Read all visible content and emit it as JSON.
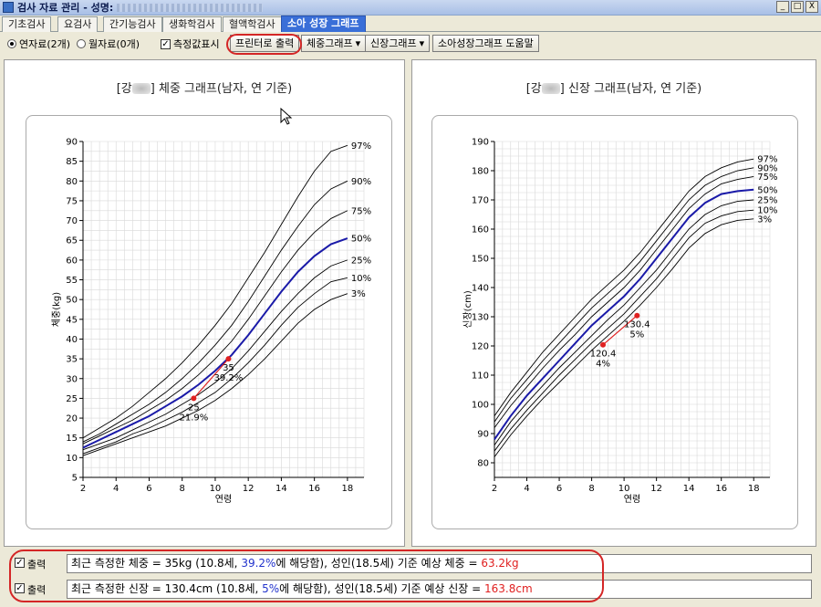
{
  "window": {
    "title": "검사 자료 관리 - 성명:",
    "min": "_",
    "max": "□",
    "close": "X"
  },
  "tabs": [
    {
      "label": "기초검사",
      "active": false
    },
    {
      "label": "요검사",
      "active": false
    },
    {
      "label": "간기능검사",
      "active": false
    },
    {
      "label": "생화학검사",
      "active": false
    },
    {
      "label": "혈액학검사",
      "active": false
    },
    {
      "label": "소아 성장 그래프",
      "active": true
    }
  ],
  "toolbar": {
    "radio_year": "연자료(2개)",
    "radio_month": "월자료(0개)",
    "check_values": "측정값표시",
    "print": "프린터로 출력",
    "weight_graph": "체중그래프",
    "height_graph": "신장그래프",
    "help": "소아성장그래프 도움말"
  },
  "weight_chart": {
    "title_pre": "[강",
    "title_post": "] 체중 그래프(남자, 연 기준)",
    "xlabel": "연령",
    "ylabel": "체중(kg)",
    "x_ticks": [
      2,
      4,
      6,
      8,
      10,
      12,
      14,
      16,
      18
    ],
    "y_ticks": [
      5,
      10,
      15,
      20,
      25,
      30,
      35,
      40,
      45,
      50,
      55,
      60,
      65,
      70,
      75,
      80,
      85,
      90
    ],
    "points": [
      {
        "age": 8.7,
        "value": 25,
        "label": "25",
        "pct": "21.9%"
      },
      {
        "age": 10.8,
        "value": 35,
        "label": "35",
        "pct": "39.2%"
      }
    ]
  },
  "height_chart": {
    "title_pre": "[강",
    "title_post": "] 신장 그래프(남자, 연 기준)",
    "xlabel": "연령",
    "ylabel": "신장(cm)",
    "x_ticks": [
      2,
      4,
      6,
      8,
      10,
      12,
      14,
      16,
      18
    ],
    "y_ticks": [
      80,
      90,
      100,
      110,
      120,
      130,
      140,
      150,
      160,
      170,
      180,
      190
    ],
    "points": [
      {
        "age": 8.7,
        "value": 120.4,
        "label": "120.4",
        "pct": "4%"
      },
      {
        "age": 10.8,
        "value": 130.4,
        "label": "130.4",
        "pct": "5%"
      }
    ]
  },
  "chart_data": [
    {
      "type": "line",
      "title": "체중 그래프(남자, 연 기준)",
      "xlabel": "연령",
      "ylabel": "체중(kg)",
      "xlim": [
        2,
        19
      ],
      "ylim": [
        5,
        90
      ],
      "x": [
        2,
        3,
        4,
        5,
        6,
        7,
        8,
        9,
        10,
        11,
        12,
        13,
        14,
        15,
        16,
        17,
        18
      ],
      "series": [
        {
          "name": "97%",
          "values": [
            15,
            17.5,
            20,
            23,
            26.5,
            30,
            34,
            38.5,
            43.5,
            49,
            55.5,
            62,
            69,
            76,
            82.5,
            87.5,
            89
          ]
        },
        {
          "name": "90%",
          "values": [
            14,
            16,
            18.5,
            21,
            23.5,
            26.5,
            30,
            34,
            38.5,
            43.5,
            49.5,
            56,
            62.5,
            68.5,
            74,
            78,
            80
          ]
        },
        {
          "name": "75%",
          "values": [
            13.5,
            15.5,
            17.5,
            19.5,
            22,
            24.5,
            27.5,
            31,
            35,
            39.5,
            45,
            51,
            57,
            62.5,
            67,
            70.5,
            72.5
          ]
        },
        {
          "name": "50%",
          "values": [
            12.5,
            14.5,
            16.5,
            18.5,
            20.5,
            23,
            25.5,
            28.5,
            32,
            36,
            41,
            46.5,
            52,
            57,
            61,
            64,
            65.5
          ]
        },
        {
          "name": "25%",
          "values": [
            12,
            13.5,
            15,
            17,
            19,
            21,
            23.5,
            26,
            29,
            32.5,
            37,
            42,
            47,
            51.5,
            55.5,
            58.5,
            60
          ]
        },
        {
          "name": "10%",
          "values": [
            11,
            12.5,
            14,
            16,
            17.5,
            19.5,
            21.5,
            24,
            26.5,
            30,
            34,
            38.5,
            43.5,
            48,
            51.5,
            54.5,
            55.5
          ]
        },
        {
          "name": "3%",
          "values": [
            10.5,
            12,
            13.5,
            15,
            16.5,
            18,
            20,
            22,
            24.5,
            27.5,
            31,
            35,
            39.5,
            44,
            47.5,
            50,
            51.5
          ]
        }
      ],
      "measurements": [
        {
          "age": 8.7,
          "value": 25,
          "percentile": "21.9%"
        },
        {
          "age": 10.8,
          "value": 35,
          "percentile": "39.2%"
        }
      ],
      "grid": true
    },
    {
      "type": "line",
      "title": "신장 그래프(남자, 연 기준)",
      "xlabel": "연령",
      "ylabel": "신장(cm)",
      "xlim": [
        2,
        19
      ],
      "ylim": [
        75,
        190
      ],
      "x": [
        2,
        3,
        4,
        5,
        6,
        7,
        8,
        9,
        10,
        11,
        12,
        13,
        14,
        15,
        16,
        17,
        18
      ],
      "series": [
        {
          "name": "97%",
          "values": [
            96,
            104,
            111,
            118,
            124,
            130,
            136,
            141,
            146,
            152,
            159,
            166,
            173,
            178,
            181,
            183,
            184
          ]
        },
        {
          "name": "90%",
          "values": [
            94,
            102,
            108.5,
            115,
            121,
            127,
            133,
            138,
            143,
            149,
            156,
            163,
            170,
            175,
            178,
            180,
            181
          ]
        },
        {
          "name": "75%",
          "values": [
            92,
            99.5,
            106,
            112.5,
            118.5,
            124,
            130,
            135,
            140,
            146,
            153,
            160,
            167,
            172,
            175.5,
            177,
            178
          ]
        },
        {
          "name": "50%",
          "values": [
            88,
            96,
            103,
            109,
            115,
            121,
            127,
            132,
            137,
            143,
            150,
            157,
            164,
            169,
            172,
            173,
            173.5
          ]
        },
        {
          "name": "25%",
          "values": [
            86,
            94,
            100.5,
            106.5,
            112.5,
            118,
            123.5,
            129,
            134,
            140,
            146,
            153,
            160,
            165,
            168,
            169.5,
            170
          ]
        },
        {
          "name": "10%",
          "values": [
            84,
            91.5,
            98,
            104,
            110,
            115.5,
            121,
            126,
            131,
            137,
            143,
            150,
            157,
            162,
            164.5,
            166,
            166.5
          ]
        },
        {
          "name": "3%",
          "values": [
            82,
            89.5,
            96,
            102,
            107.5,
            113,
            118.5,
            123.5,
            128.5,
            134,
            140,
            146.5,
            153.5,
            158.5,
            161.5,
            163,
            163.5
          ]
        }
      ],
      "measurements": [
        {
          "age": 8.7,
          "value": 120.4,
          "percentile": "4%"
        },
        {
          "age": 10.8,
          "value": 130.4,
          "percentile": "5%"
        }
      ],
      "grid": true
    }
  ],
  "info": {
    "print_label": "출력",
    "weight_pre": "최근 측정한 체중 = 35kg (10.8세, ",
    "weight_pct": "39.2%",
    "weight_mid": "에 해당함), 성인(18.5세) 기준 예상 체중 = ",
    "weight_pred": "63.2kg",
    "height_pre": "최근 측정한 신장 = 130.4cm (10.8세, ",
    "height_pct": "5%",
    "height_mid": "에 해당함), 성인(18.5세) 기준 예상 신장 = ",
    "height_pred": "163.8cm"
  },
  "colors": {
    "median": "#1a1aa8",
    "curve": "#000000",
    "measure": "#e02020",
    "grid": "#d8d8d8",
    "tab_active": "#3a6fd8"
  }
}
